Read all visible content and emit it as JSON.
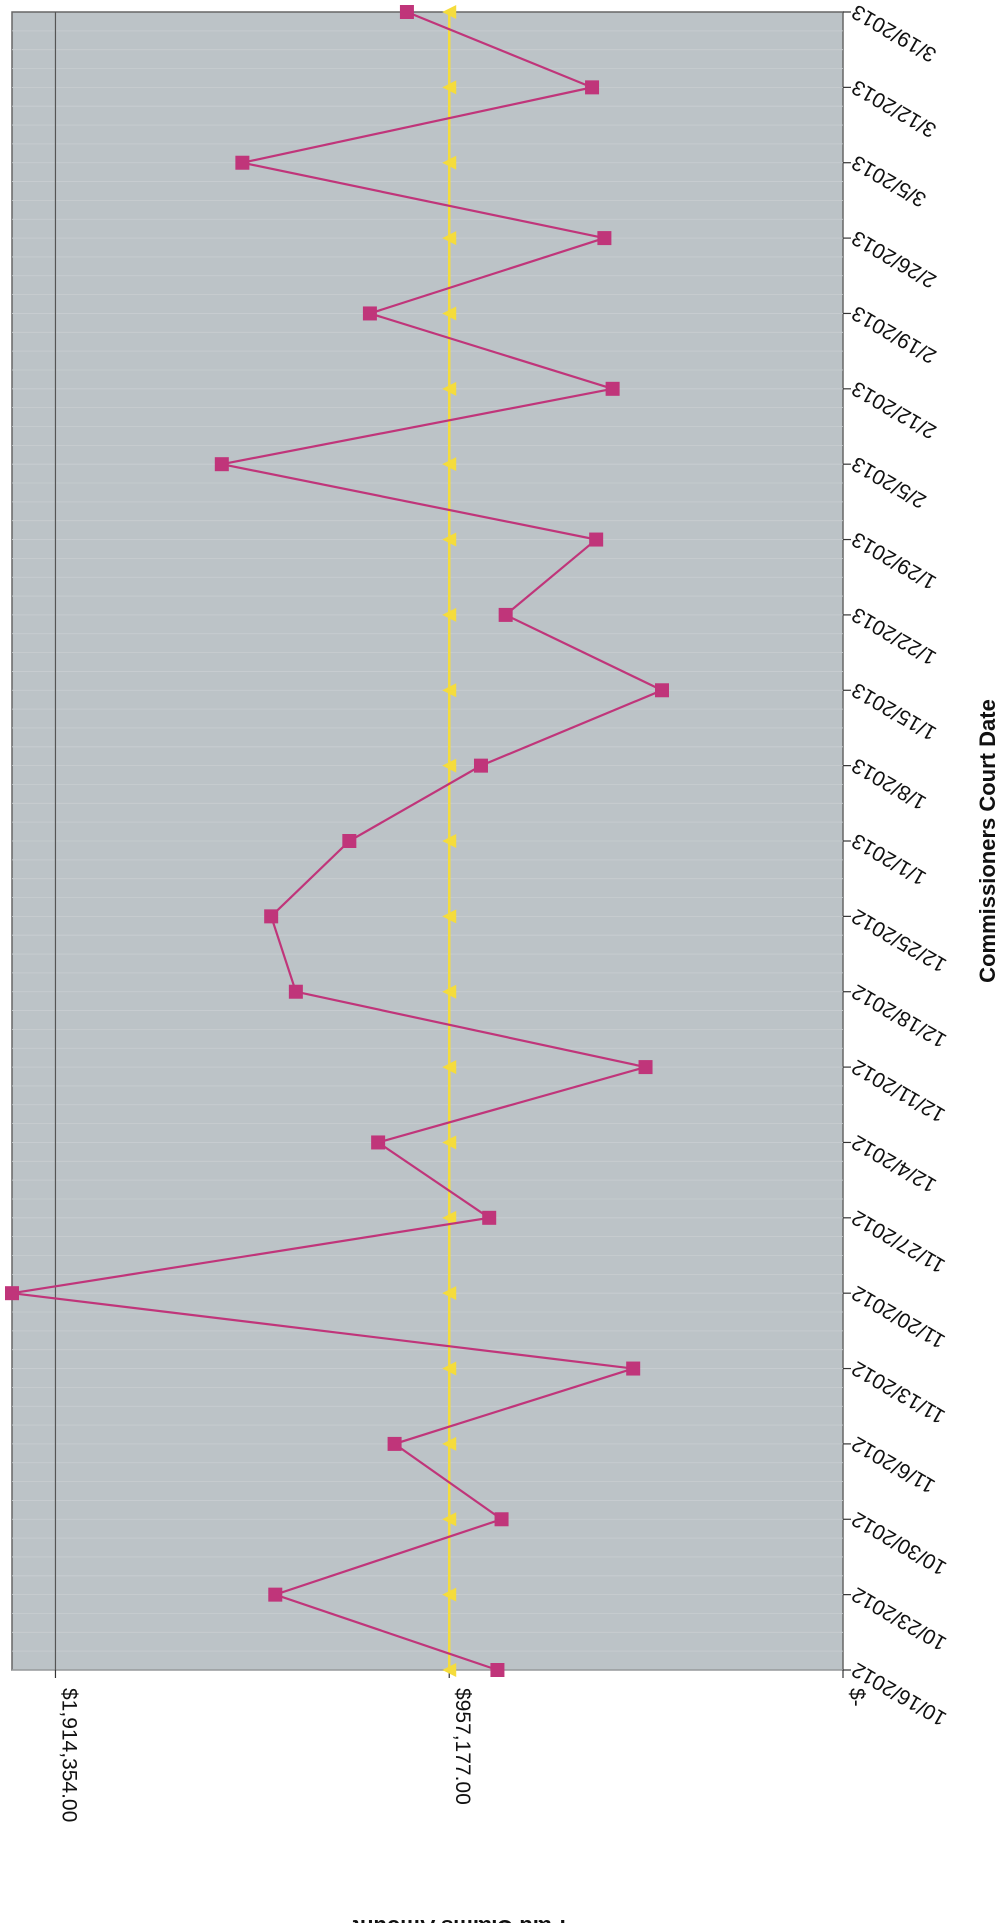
{
  "chart_data": {
    "type": "line",
    "xlabel": "Commissioners Court Date",
    "ylabel": "Paid Claims Amount",
    "categories": [
      "10/16/2012",
      "10/23/2012",
      "10/30/2012",
      "11/6/2012",
      "11/13/2012",
      "11/20/2012",
      "11/27/2012",
      "12/4/2012",
      "12/11/2012",
      "12/18/2012",
      "12/25/2012",
      "1/1/2013",
      "1/8/2013",
      "1/15/2013",
      "1/22/2013",
      "1/29/2013",
      "2/5/2013",
      "2/12/2013",
      "2/19/2013",
      "2/26/2013",
      "3/5/2013",
      "3/12/2013",
      "3/19/2013"
    ],
    "y_ticks": [
      {
        "value": 0,
        "label": "$-"
      },
      {
        "value": 957177,
        "label": "$957,177.00"
      },
      {
        "value": 1914354,
        "label": "$1,914,354.00"
      }
    ],
    "ylim": [
      0,
      2020000
    ],
    "series": [
      {
        "color": "#c0357a",
        "marker": "square",
        "points": [
          {
            "date": "10/16/2012",
            "value": 840000
          },
          {
            "date": "10/23/2012",
            "value": 1380000
          },
          {
            "date": "10/30/2012",
            "value": 830000
          },
          {
            "date": "11/6/2012",
            "value": 1090000
          },
          {
            "date": "11/13/2012",
            "value": 510000
          },
          {
            "date": "11/20/2012",
            "value": 2020000
          },
          {
            "date": "11/27/2012",
            "value": 860000
          },
          {
            "date": "12/4/2012",
            "value": 1130000
          },
          {
            "date": "12/11/2012",
            "value": 480000
          },
          {
            "date": "12/18/2012",
            "value": 1330000
          },
          {
            "date": "12/25/2012",
            "value": 1390000
          },
          {
            "date": "1/1/2013",
            "value": 1200000
          },
          {
            "date": "1/8/2013",
            "value": 880000
          },
          {
            "date": "1/15/2013",
            "value": 440000
          },
          {
            "date": "1/22/2013",
            "value": 820000
          },
          {
            "date": "1/29/2013",
            "value": 600000
          },
          {
            "date": "2/5/2013",
            "value": 1510000
          },
          {
            "date": "2/12/2013",
            "value": 560000
          },
          {
            "date": "2/19/2013",
            "value": 1150000
          },
          {
            "date": "2/26/2013",
            "value": 580000
          },
          {
            "date": "3/5/2013",
            "value": 1460000
          },
          {
            "date": "3/12/2013",
            "value": 610000
          },
          {
            "date": "3/19/2013",
            "value": 1060000
          }
        ]
      },
      {
        "color": "#f5dc3c",
        "marker": "triangle",
        "constant_value": 957177
      }
    ],
    "grid": true,
    "legend": "none"
  }
}
